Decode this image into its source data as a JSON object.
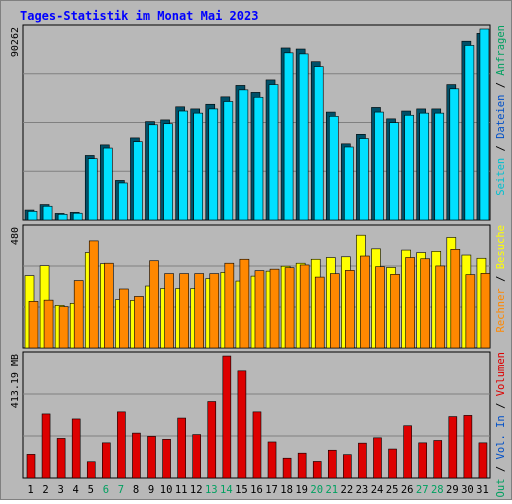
{
  "title": "Tages-Statistik im Monat Mai 2023",
  "colors": {
    "frame_bg": "#b8b8b8",
    "title": "#0000ff",
    "grid": "#808080",
    "hits": "#00b0e8",
    "files": "#00e0ff",
    "pages": "#00c0d0",
    "sites": "#ffff00",
    "visits": "#ff8800",
    "kbytes": "#dd0000",
    "weekend_label": "#00a060",
    "axis_text": "#000000"
  },
  "chart_data": [
    {
      "type": "bar",
      "name": "traffic",
      "max_label": "90262",
      "ylim": [
        0,
        90262
      ],
      "grid": true,
      "legend_placement": "right",
      "legend": [
        {
          "label": "Anfragen",
          "color": "#00a060"
        },
        {
          "label": "Dateien",
          "color": "#0050c8"
        },
        {
          "label": "Seiten",
          "color": "#00c0d0"
        }
      ],
      "categories": [
        "1",
        "2",
        "3",
        "4",
        "5",
        "6",
        "7",
        "8",
        "9",
        "10",
        "11",
        "12",
        "13",
        "14",
        "15",
        "16",
        "17",
        "18",
        "19",
        "20",
        "21",
        "22",
        "23",
        "24",
        "25",
        "26",
        "27",
        "28",
        "29",
        "30",
        "31"
      ],
      "weekend_days": [
        "6",
        "7",
        "13",
        "14",
        "20",
        "21",
        "27",
        "28"
      ],
      "series": [
        {
          "name": "Anfragen",
          "values": [
            4700,
            7300,
            3100,
            3600,
            30500,
            35500,
            18700,
            38800,
            46500,
            47300,
            53500,
            52500,
            54700,
            58200,
            63600,
            60300,
            66200,
            81300,
            80800,
            74800,
            51000,
            36000,
            40500,
            53200,
            47800,
            51500,
            52500,
            52500,
            64000,
            84500,
            88200
          ]
        },
        {
          "name": "Dateien",
          "values": [
            4100,
            6500,
            2700,
            3200,
            29000,
            34000,
            17500,
            37000,
            45000,
            45500,
            51500,
            50500,
            52500,
            56000,
            61500,
            58000,
            64000,
            79000,
            78500,
            72500,
            49000,
            34500,
            38500,
            51000,
            46000,
            49500,
            50500,
            50500,
            62000,
            82500,
            90262
          ]
        },
        {
          "name": "Seiten",
          "values": [
            1200,
            2000,
            900,
            1000,
            9000,
            10500,
            5400,
            11400,
            13700,
            14000,
            15800,
            15500,
            16100,
            17300,
            18900,
            17900,
            19600,
            24000,
            23800,
            22000,
            15100,
            10600,
            11800,
            15700,
            14100,
            15200,
            15500,
            15500,
            18800,
            24800,
            27000
          ]
        }
      ]
    },
    {
      "type": "bar",
      "name": "visitors",
      "max_label": "480",
      "ylim": [
        0,
        480
      ],
      "grid": true,
      "legend_placement": "right",
      "legend": [
        {
          "label": "Besuche",
          "color": "#ffff00"
        },
        {
          "label": "Rechner",
          "color": "#ff8800"
        }
      ],
      "categories": [
        "1",
        "2",
        "3",
        "4",
        "5",
        "6",
        "7",
        "8",
        "9",
        "10",
        "11",
        "12",
        "13",
        "14",
        "15",
        "16",
        "17",
        "18",
        "19",
        "20",
        "21",
        "22",
        "23",
        "24",
        "25",
        "26",
        "27",
        "28",
        "29",
        "30",
        "31"
      ],
      "series": [
        {
          "name": "Besuche",
          "values": [
            292,
            332,
            172,
            180,
            385,
            340,
            195,
            192,
            250,
            240,
            240,
            240,
            280,
            305,
            270,
            290,
            310,
            330,
            342,
            358,
            365,
            368,
            455,
            400,
            325,
            395,
            385,
            390,
            446,
            375,
            362
          ]
        },
        {
          "name": "Rechner",
          "values": [
            188,
            193,
            167,
            272,
            432,
            342,
            238,
            208,
            352,
            300,
            300,
            300,
            300,
            342,
            358,
            312,
            318,
            324,
            335,
            286,
            300,
            313,
            371,
            328,
            297,
            365,
            360,
            331,
            398,
            296,
            301
          ]
        }
      ]
    },
    {
      "type": "bar",
      "name": "volume",
      "max_label": "413.19 MB",
      "ylim": [
        0,
        413.19
      ],
      "unit": "MB",
      "grid": true,
      "legend_placement": "right",
      "legend": [
        {
          "label": "Volumen",
          "color": "#dd0000"
        },
        {
          "label": "Vol. In",
          "color": "#0050c8"
        },
        {
          "label": "Vol. Out",
          "color": "#00a060"
        }
      ],
      "categories": [
        "1",
        "2",
        "3",
        "4",
        "5",
        "6",
        "7",
        "8",
        "9",
        "10",
        "11",
        "12",
        "13",
        "14",
        "15",
        "16",
        "17",
        "18",
        "19",
        "20",
        "21",
        "22",
        "23",
        "24",
        "25",
        "26",
        "27",
        "28",
        "29",
        "30",
        "31"
      ],
      "series": [
        {
          "name": "Volumen",
          "values": [
            80,
            217,
            134,
            200,
            55,
            119,
            224,
            152,
            141,
            131,
            203,
            147,
            259,
            413,
            363,
            224,
            122,
            67,
            84,
            56,
            94,
            79,
            118,
            136,
            98,
            177,
            119,
            127,
            208,
            212,
            119
          ]
        }
      ]
    }
  ]
}
